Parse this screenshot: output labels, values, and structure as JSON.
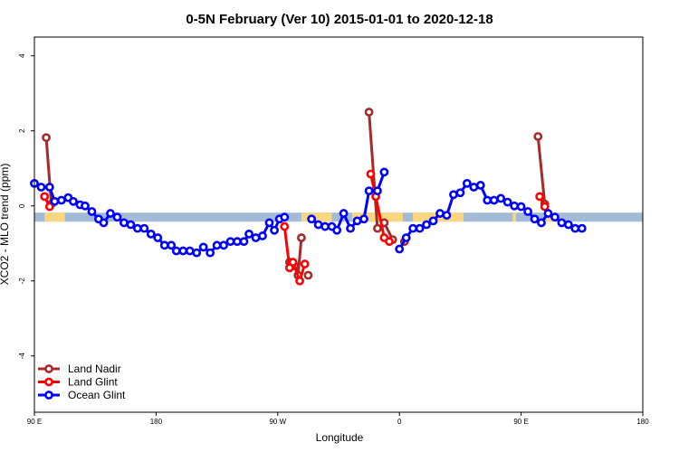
{
  "chart_data": {
    "type": "line",
    "title": "0-5N February (Ver 10)   2015-01-01 to 2020-12-18",
    "xlabel": "Longitude",
    "ylabel": "XCO2 - MLO trend (ppm)",
    "xlim": [
      -90,
      270
    ],
    "ylim": [
      -5.5,
      4.5
    ],
    "x_ticks": [
      {
        "value": -90,
        "label": "90 E"
      },
      {
        "value": -18,
        "label": "180"
      },
      {
        "value": 54,
        "label": "90 W"
      },
      {
        "value": 126,
        "label": "0"
      },
      {
        "value": 198,
        "label": "90 E"
      },
      {
        "value": 270,
        "label": "180"
      }
    ],
    "y_ticks": [
      {
        "value": -4,
        "label": "-4"
      },
      {
        "value": -2,
        "label": "-2"
      },
      {
        "value": 0,
        "label": "0"
      },
      {
        "value": 2,
        "label": "2"
      },
      {
        "value": 4,
        "label": "4"
      }
    ],
    "band": {
      "y_from": -0.42,
      "y_to": -0.18,
      "color_ocean": "#a3bbd8",
      "color_land": "#f9d77e",
      "land_spans": [
        [
          -84,
          -72
        ],
        [
          68,
          86
        ],
        [
          98,
          128
        ],
        [
          134,
          164
        ],
        [
          193,
          195
        ],
        [
          212,
          218
        ]
      ]
    },
    "series": [
      {
        "name": "Land Nadir",
        "color": "#a52a2a",
        "segments": [
          [
            [
              -83,
              1.82
            ],
            [
              -80,
              0.05
            ]
          ],
          [
            [
              68,
              -0.85
            ],
            [
              66,
              -1.85
            ],
            [
              64,
              -1.6
            ],
            [
              61,
              -1.5
            ]
          ],
          [
            [
              72,
              -1.85
            ]
          ],
          [
            [
              108,
              2.5
            ],
            [
              113,
              -0.6
            ],
            [
              117,
              -0.45
            ],
            [
              122,
              -0.9
            ]
          ],
          [
            [
              129,
              -0.95
            ]
          ],
          [
            [
              208,
              1.85
            ],
            [
              212,
              0.05
            ]
          ]
        ]
      },
      {
        "name": "Land Glint",
        "color": "#ff0000",
        "segments": [
          [
            [
              -84,
              0.25
            ],
            [
              -81,
              -0.02
            ]
          ],
          [
            [
              58,
              -0.55
            ],
            [
              61,
              -1.65
            ],
            [
              63,
              -1.5
            ],
            [
              67,
              -2.0
            ],
            [
              70,
              -1.55
            ]
          ],
          [
            [
              109,
              0.85
            ],
            [
              112,
              0.25
            ],
            [
              117,
              -0.85
            ],
            [
              120,
              -0.95
            ]
          ],
          [
            [
              209,
              0.25
            ],
            [
              212,
              -0.02
            ]
          ]
        ]
      },
      {
        "name": "Ocean Glint",
        "color": "#0000ff",
        "segments": [
          [
            [
              -90,
              0.6
            ],
            [
              -86,
              0.5
            ],
            [
              -81,
              0.5
            ],
            [
              -78,
              0.12
            ],
            [
              -74,
              0.15
            ],
            [
              -70,
              0.22
            ],
            [
              -67,
              0.12
            ],
            [
              -63,
              0.03
            ],
            [
              -60,
              0.0
            ],
            [
              -56,
              -0.15
            ],
            [
              -52,
              -0.35
            ],
            [
              -49,
              -0.45
            ],
            [
              -45,
              -0.2
            ],
            [
              -41,
              -0.3
            ],
            [
              -37,
              -0.45
            ],
            [
              -33,
              -0.5
            ],
            [
              -29,
              -0.6
            ],
            [
              -25,
              -0.6
            ],
            [
              -21,
              -0.75
            ],
            [
              -17,
              -0.85
            ],
            [
              -13,
              -1.05
            ],
            [
              -9,
              -1.05
            ],
            [
              -6,
              -1.2
            ],
            [
              -2,
              -1.2
            ],
            [
              2,
              -1.2
            ],
            [
              6,
              -1.25
            ],
            [
              10,
              -1.1
            ],
            [
              14,
              -1.25
            ],
            [
              18,
              -1.05
            ],
            [
              22,
              -1.05
            ],
            [
              26,
              -0.95
            ],
            [
              30,
              -0.95
            ],
            [
              34,
              -0.95
            ],
            [
              37,
              -0.75
            ],
            [
              41,
              -0.85
            ],
            [
              45,
              -0.8
            ],
            [
              49,
              -0.45
            ],
            [
              52,
              -0.65
            ],
            [
              55,
              -0.35
            ],
            [
              58,
              -0.3
            ]
          ],
          [
            [
              74,
              -0.35
            ],
            [
              78,
              -0.5
            ],
            [
              82,
              -0.55
            ],
            [
              86,
              -0.55
            ],
            [
              89,
              -0.65
            ],
            [
              93,
              -0.2
            ],
            [
              97,
              -0.6
            ],
            [
              101,
              -0.4
            ],
            [
              105,
              -0.35
            ],
            [
              108,
              0.4
            ],
            [
              113,
              0.4
            ],
            [
              117,
              0.9
            ]
          ],
          [
            [
              126,
              -1.15
            ],
            [
              130,
              -0.85
            ],
            [
              134,
              -0.6
            ],
            [
              138,
              -0.6
            ],
            [
              142,
              -0.5
            ],
            [
              146,
              -0.4
            ],
            [
              150,
              -0.2
            ],
            [
              154,
              -0.25
            ],
            [
              158,
              0.3
            ],
            [
              162,
              0.35
            ],
            [
              166,
              0.6
            ],
            [
              170,
              0.5
            ],
            [
              174,
              0.55
            ],
            [
              178,
              0.15
            ],
            [
              182,
              0.15
            ],
            [
              186,
              0.2
            ],
            [
              190,
              0.1
            ],
            [
              194,
              0.0
            ],
            [
              198,
              -0.02
            ],
            [
              202,
              -0.15
            ],
            [
              206,
              -0.35
            ],
            [
              210,
              -0.45
            ],
            [
              214,
              -0.2
            ],
            [
              218,
              -0.3
            ],
            [
              222,
              -0.45
            ],
            [
              226,
              -0.5
            ],
            [
              230,
              -0.6
            ],
            [
              234,
              -0.6
            ]
          ]
        ]
      }
    ],
    "legend_position": "bottom-left"
  }
}
